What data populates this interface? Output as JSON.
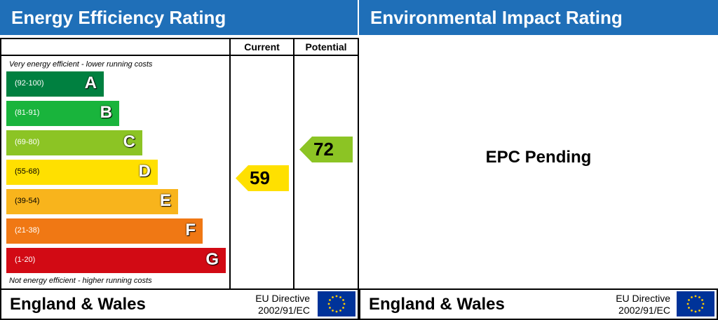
{
  "left": {
    "title": "Energy Efficiency Rating",
    "columns": {
      "current": "Current",
      "potential": "Potential"
    },
    "top_note": "Very energy efficient - lower running costs",
    "bottom_note": "Not energy efficient - higher running costs",
    "bands": [
      {
        "letter": "A",
        "range": "(92-100)",
        "color": "#008040"
      },
      {
        "letter": "B",
        "range": "(81-91)",
        "color": "#19b43c"
      },
      {
        "letter": "C",
        "range": "(69-80)",
        "color": "#8cc424"
      },
      {
        "letter": "D",
        "range": "(55-68)",
        "color": "#ffe000"
      },
      {
        "letter": "E",
        "range": "(39-54)",
        "color": "#f8b41c"
      },
      {
        "letter": "F",
        "range": "(21-38)",
        "color": "#f07814"
      },
      {
        "letter": "G",
        "range": "(1-20)",
        "color": "#d20a14"
      }
    ],
    "current": {
      "value": "59",
      "band": "D",
      "color": "#ffe000"
    },
    "potential": {
      "value": "72",
      "band": "C",
      "color": "#8cc424"
    },
    "footer": {
      "region": "England & Wales",
      "directive_line1": "EU Directive",
      "directive_line2": "2002/91/EC"
    }
  },
  "right": {
    "title": "Environmental Impact Rating",
    "status": "EPC Pending",
    "footer": {
      "region": "England & Wales",
      "directive_line1": "EU Directive",
      "directive_line2": "2002/91/EC"
    }
  },
  "colors": {
    "header_blue": "#1f6fb8",
    "eu_flag_blue": "#003399",
    "eu_star_yellow": "#ffcc00"
  }
}
